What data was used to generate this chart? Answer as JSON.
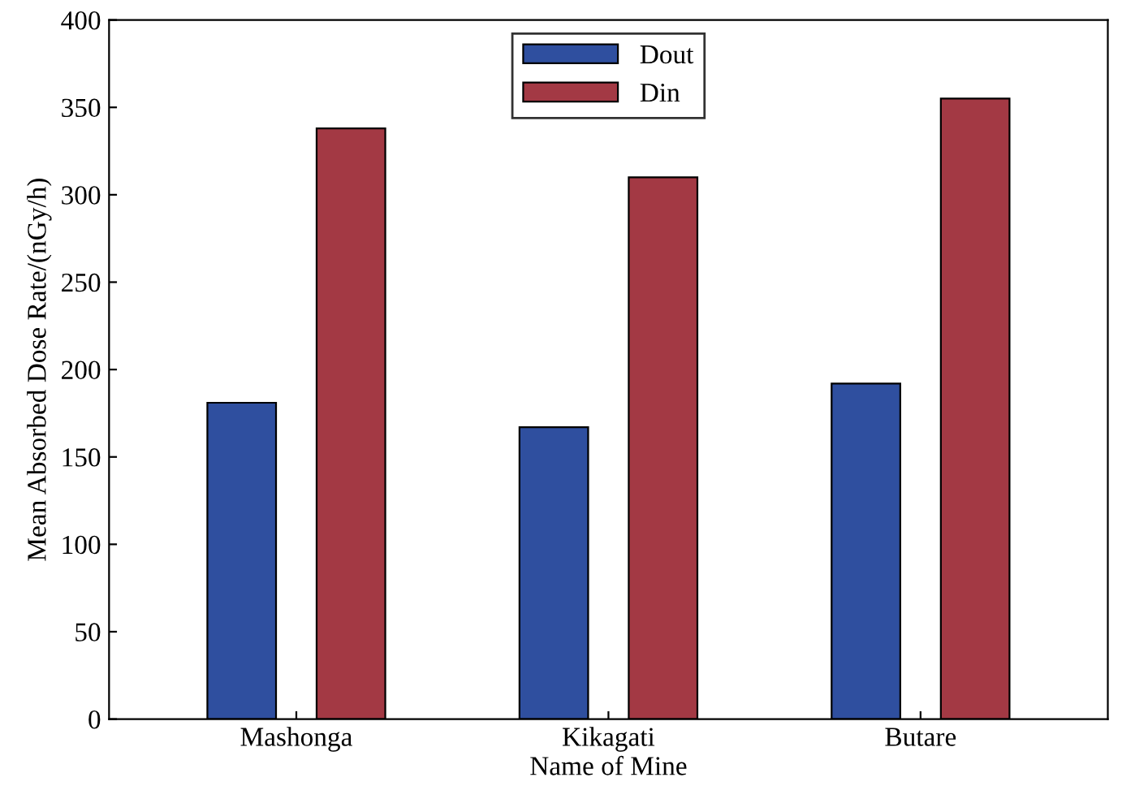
{
  "chart_data": {
    "type": "bar",
    "xlabel": "Name of Mine",
    "ylabel": "Mean Absorbed Dose Rate/(nGy/h)",
    "categories": [
      "Mashonga",
      "Kikagati",
      "Butare"
    ],
    "series": [
      {
        "name": "Dout",
        "color": "#2f4f9f",
        "values": [
          181,
          167,
          192
        ]
      },
      {
        "name": "Din",
        "color": "#a33944",
        "values": [
          338,
          310,
          355
        ]
      }
    ],
    "ylim": [
      0,
      400
    ],
    "yticks": [
      0,
      50,
      100,
      150,
      200,
      250,
      300,
      350,
      400
    ],
    "grid": false,
    "legend": "top"
  }
}
